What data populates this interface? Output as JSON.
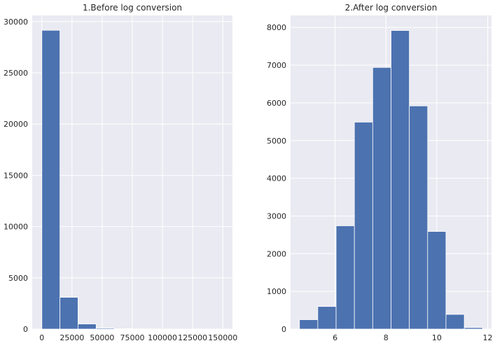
{
  "chart_data": [
    {
      "type": "bar",
      "title": "1.Before log conversion",
      "xlabel": "",
      "ylabel": "",
      "bin_edges": [
        0,
        15000,
        30000,
        45000,
        60000,
        75000,
        90000,
        105000,
        120000,
        135000,
        150000
      ],
      "values": [
        29150,
        3100,
        500,
        90,
        40,
        20,
        10,
        5,
        5,
        3
      ],
      "xlim": [
        -8000,
        158000
      ],
      "ylim": [
        0,
        30600
      ],
      "xticks": [
        0,
        25000,
        50000,
        75000,
        100000,
        125000,
        150000
      ],
      "yticks": [
        0,
        5000,
        10000,
        15000,
        20000,
        25000,
        30000
      ],
      "grid": true,
      "bar_color": "#4c72b0",
      "background_color": "#eaeaf2"
    },
    {
      "type": "bar",
      "title": "2.After log conversion",
      "xlabel": "",
      "ylabel": "",
      "bin_edges": [
        4.6,
        5.32,
        6.04,
        6.76,
        7.48,
        8.2,
        8.92,
        9.64,
        10.36,
        11.08,
        11.8
      ],
      "values": [
        250,
        600,
        2740,
        5490,
        6940,
        7920,
        5920,
        2590,
        390,
        40
      ],
      "xlim": [
        4.25,
        12.15
      ],
      "ylim": [
        0,
        8320
      ],
      "xticks": [
        6,
        8,
        10,
        12
      ],
      "yticks": [
        0,
        1000,
        2000,
        3000,
        4000,
        5000,
        6000,
        7000,
        8000
      ],
      "grid": true,
      "bar_color": "#4c72b0",
      "background_color": "#eaeaf2"
    }
  ]
}
